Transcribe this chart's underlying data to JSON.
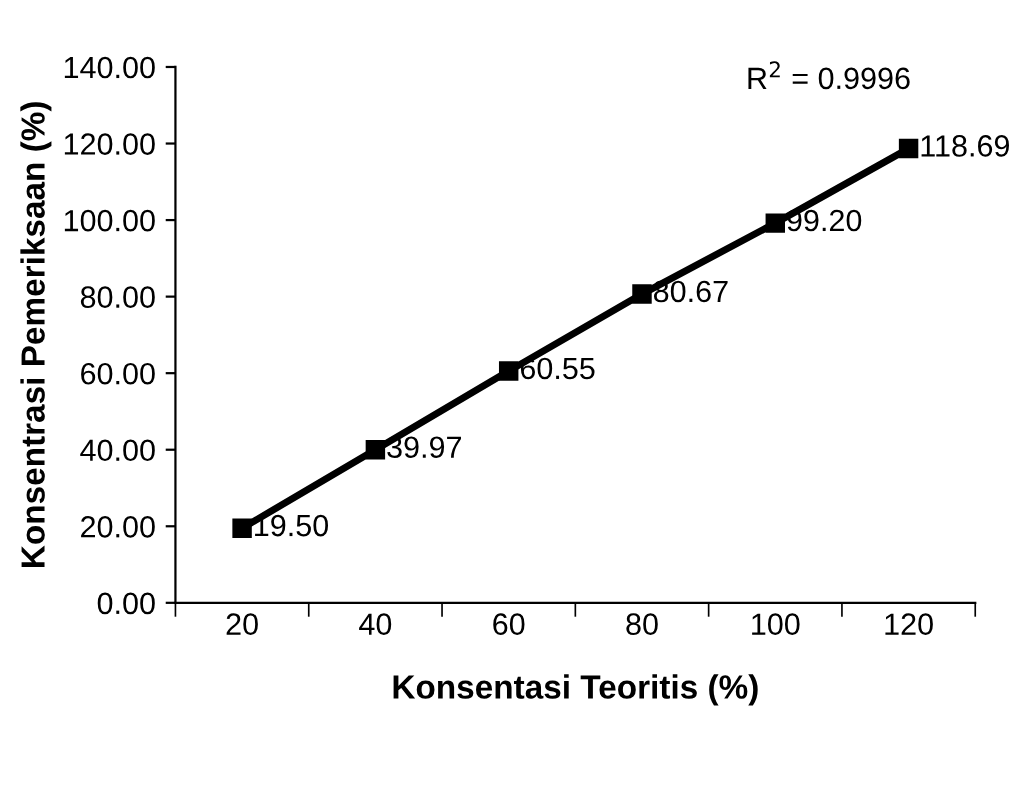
{
  "chart_data": {
    "type": "line",
    "xlabel": "Konsentasi Teoritis (%)",
    "ylabel": "Konsentrasi Pemeriksaan (%)",
    "categories": [
      "20",
      "40",
      "60",
      "80",
      "100",
      "120"
    ],
    "series": [
      {
        "color": "#000000",
        "values": [
          19.5,
          39.97,
          60.55,
          80.67,
          99.2,
          118.69
        ],
        "value_labels": [
          "19.50",
          "39.97",
          "60.55",
          "80.67",
          "99.20",
          "118.69"
        ]
      }
    ],
    "marker": "square",
    "line_style": "solid",
    "grid": false,
    "legend": false,
    "ylim": [
      0,
      140
    ],
    "yticks": [
      {
        "value": 0,
        "label": "0.00"
      },
      {
        "value": 20,
        "label": "20.00"
      },
      {
        "value": 40,
        "label": "40.00"
      },
      {
        "value": 60,
        "label": "60.00"
      },
      {
        "value": 80,
        "label": "80.00"
      },
      {
        "value": 100,
        "label": "100.00"
      },
      {
        "value": 120,
        "label": "120.00"
      },
      {
        "value": 140,
        "label": "140.00"
      }
    ],
    "annotations": [
      {
        "text": "R$^{2}$ = 0.9996"
      }
    ]
  }
}
